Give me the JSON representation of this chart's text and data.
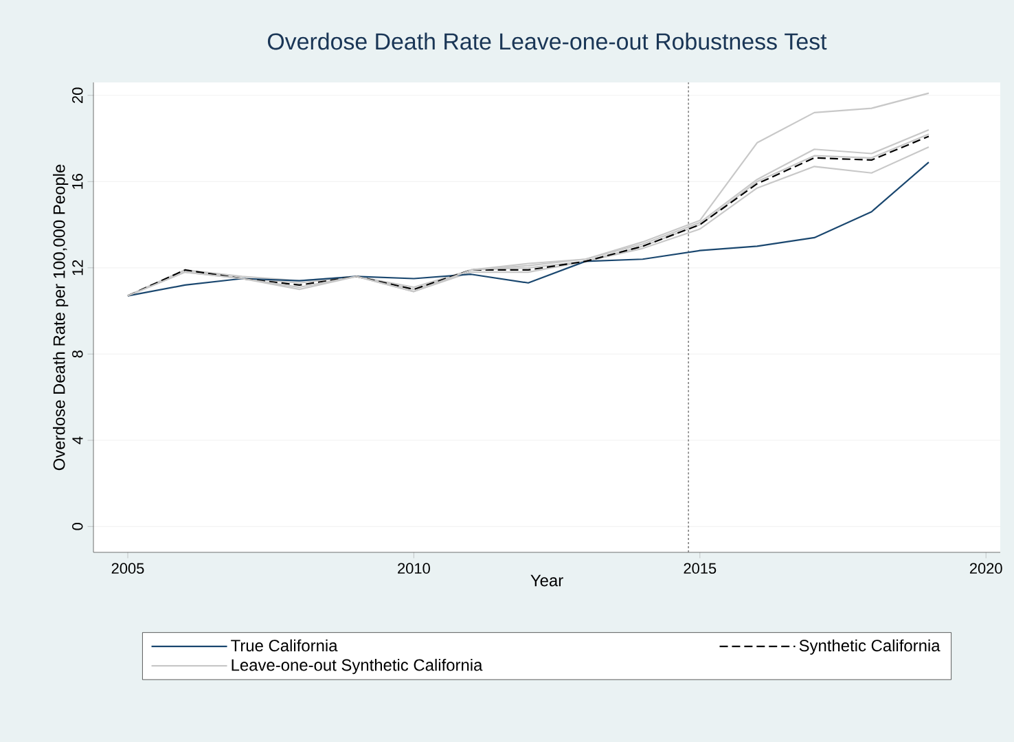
{
  "chart_data": {
    "type": "line",
    "title": "Overdose Death Rate Leave-one-out Robustness Test",
    "xlabel": "Year",
    "ylabel": "Overdose Death Rate per 100,000 People",
    "x": [
      2005,
      2006,
      2007,
      2008,
      2009,
      2010,
      2011,
      2012,
      2013,
      2014,
      2015,
      2016,
      2017,
      2018,
      2019
    ],
    "series": [
      {
        "name": "True California",
        "color": "#1a476f",
        "line_style": "solid",
        "values": [
          10.7,
          11.2,
          11.5,
          11.4,
          11.6,
          11.5,
          11.7,
          11.3,
          12.3,
          12.4,
          12.8,
          13.0,
          13.4,
          14.6,
          16.9
        ]
      },
      {
        "name": "Synthetic California",
        "color": "#000000",
        "line_style": "dashed",
        "values": [
          10.7,
          11.9,
          11.5,
          11.2,
          11.6,
          11.0,
          11.9,
          11.9,
          12.3,
          13.0,
          14.0,
          15.9,
          17.1,
          17.0,
          18.1
        ]
      },
      {
        "name": "Leave-one-out Synthetic California",
        "color": "#c8c8c8",
        "line_style": "solid",
        "values": [
          10.7,
          11.8,
          11.5,
          11.1,
          11.6,
          10.9,
          11.9,
          12.1,
          12.4,
          13.2,
          14.2,
          17.8,
          19.2,
          19.4,
          20.1
        ]
      },
      {
        "color": "#c8c8c8",
        "line_style": "solid",
        "values": [
          10.7,
          11.9,
          11.5,
          11.3,
          11.6,
          11.0,
          11.9,
          12.2,
          12.4,
          13.1,
          14.1,
          16.1,
          17.5,
          17.3,
          18.4
        ]
      },
      {
        "color": "#c8c8c8",
        "line_style": "solid",
        "values": [
          10.7,
          11.8,
          11.5,
          11.0,
          11.6,
          10.9,
          11.8,
          11.8,
          12.3,
          12.9,
          13.8,
          15.7,
          16.7,
          16.4,
          17.6
        ]
      },
      {
        "color": "#c8c8c8",
        "line_style": "solid",
        "values": [
          10.7,
          11.9,
          11.6,
          11.4,
          11.6,
          11.1,
          11.9,
          12.0,
          12.3,
          13.0,
          14.0,
          16.0,
          17.2,
          17.1,
          18.2
        ]
      }
    ],
    "ref_lines": [
      {
        "axis": "x",
        "value": 2014.8,
        "color": "#808080",
        "line_style": "dotted"
      }
    ],
    "xlim": [
      2004.4,
      2020.25
    ],
    "ylim": [
      -1.2,
      20.6
    ],
    "xticks": [
      2005,
      2010,
      2015,
      2020
    ],
    "yticks": [
      0,
      4,
      8,
      12,
      16,
      20
    ],
    "grid": "y",
    "legend": "bottom",
    "marker": "none"
  }
}
